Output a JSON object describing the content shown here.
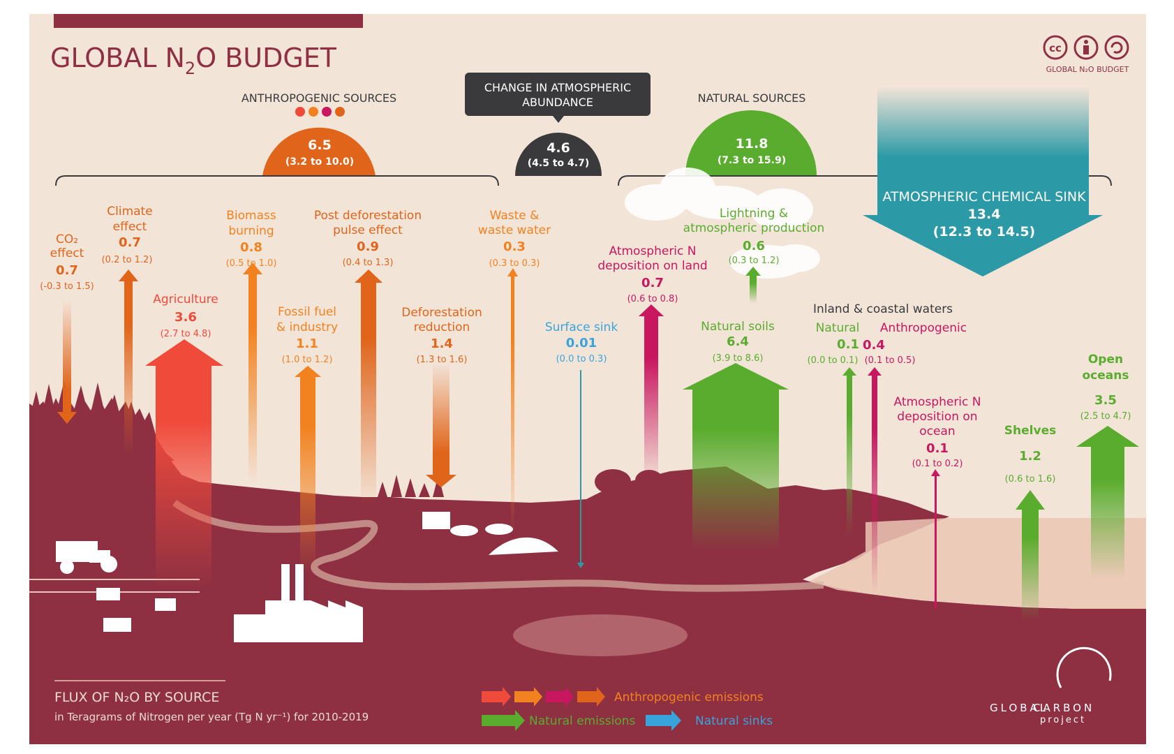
{
  "title_prefix": "GLOBAL N",
  "title_sub": "2",
  "title_suffix": "O BUDGET",
  "cc_caption": "GLOBAL N₂O BUDGET",
  "change": {
    "label1": "CHANGE IN ATMOSPHERIC",
    "label2": "ABUNDANCE",
    "value": "4.6",
    "range": "(4.5 to 4.7)"
  },
  "anthropogenic": {
    "label": "ANTHROPOGENIC SOURCES",
    "value": "6.5",
    "range": "(3.2 to 10.0)"
  },
  "natural": {
    "label": "NATURAL SOURCES",
    "value": "11.8",
    "range": "(7.3 to 15.9)"
  },
  "sink": {
    "label": "ATMOSPHERIC CHEMICAL SINK",
    "value": "13.4",
    "range": "(12.3 to 14.5)"
  },
  "fluxes": {
    "co2": {
      "l1": "CO₂",
      "l2": "effect",
      "value": "0.7",
      "range": "(-0.3 to 1.5)"
    },
    "climate": {
      "l1": "Climate",
      "l2": "effect",
      "value": "0.7",
      "range": "(0.2 to 1.2)"
    },
    "agriculture": {
      "l1": "Agriculture",
      "value": "3.6",
      "range": "(2.7 to 4.8)"
    },
    "biomass": {
      "l1": "Biomass",
      "l2": "burning",
      "value": "0.8",
      "range": "(0.5 to 1.0)"
    },
    "fossil": {
      "l1": "Fossil fuel",
      "l2": "& industry",
      "value": "1.1",
      "range": "(1.0 to 1.2)"
    },
    "postdef": {
      "l1": "Post deforestation",
      "l2": "pulse effect",
      "value": "0.9",
      "range": "(0.4 to 1.3)"
    },
    "defred": {
      "l1": "Deforestation",
      "l2": "reduction",
      "value": "1.4",
      "range": "(1.3 to 1.6)"
    },
    "waste": {
      "l1": "Waste &",
      "l2": "waste water",
      "value": "0.3",
      "range": "(0.3 to 0.3)"
    },
    "surface": {
      "l1": "Surface sink",
      "value": "0.01",
      "range": "(0.0 to 0.3)"
    },
    "depland": {
      "l1": "Atmospheric N",
      "l2": "deposition on land",
      "value": "0.7",
      "range": "(0.6 to 0.8)"
    },
    "lightning": {
      "l1": "Lightning &",
      "l2": "atmospheric production",
      "value": "0.6",
      "range": "(0.3 to 1.2)"
    },
    "soils": {
      "l1": "Natural soils",
      "value": "6.4",
      "range": "(3.9 to 8.6)"
    },
    "inland": {
      "heading": "Inland & coastal waters",
      "nat_label": "Natural",
      "nat_value": "0.1",
      "nat_range": "(0.0 to 0.1)",
      "ant_label": "Anthropogenic",
      "ant_value": "0.4",
      "ant_range": "(0.1 to 0.5)"
    },
    "depocean": {
      "l1": "Atmospheric N",
      "l2": "deposition on",
      "l3": "ocean",
      "value": "0.1",
      "range": "(0.1 to 0.2)"
    },
    "shelves": {
      "l1": "Shelves",
      "value": "1.2",
      "range": "(0.6 to 1.6)"
    },
    "oceans": {
      "l1": "Open",
      "l2": "oceans",
      "value": "3.5",
      "range": "(2.5 to 4.7)"
    }
  },
  "footer": {
    "title": "FLUX OF N₂O BY SOURCE",
    "subtitle": "in Teragrams of Nitrogen per year (Tg N yr⁻¹) for 2010-2019"
  },
  "legend": {
    "anthro": "Anthropogenic emissions",
    "natural": "Natural emissions",
    "sinks": "Natural sinks"
  },
  "logo": {
    "line1": "GLOBAL",
    "line2": "CARBON",
    "line3": "project"
  },
  "colors": {
    "background": "#f3e4d8",
    "land": "#8e3042",
    "anthro_red": "#f04a3b",
    "anthro_orange": "#f2821f",
    "anthro_magenta": "#c8175f",
    "anthro_darkorange": "#e0651b",
    "natural_green": "#5aac2e",
    "sink_teal": "#2b9aa6",
    "sink_blue": "#39a4dc",
    "change_dark": "#3a3a3c"
  }
}
